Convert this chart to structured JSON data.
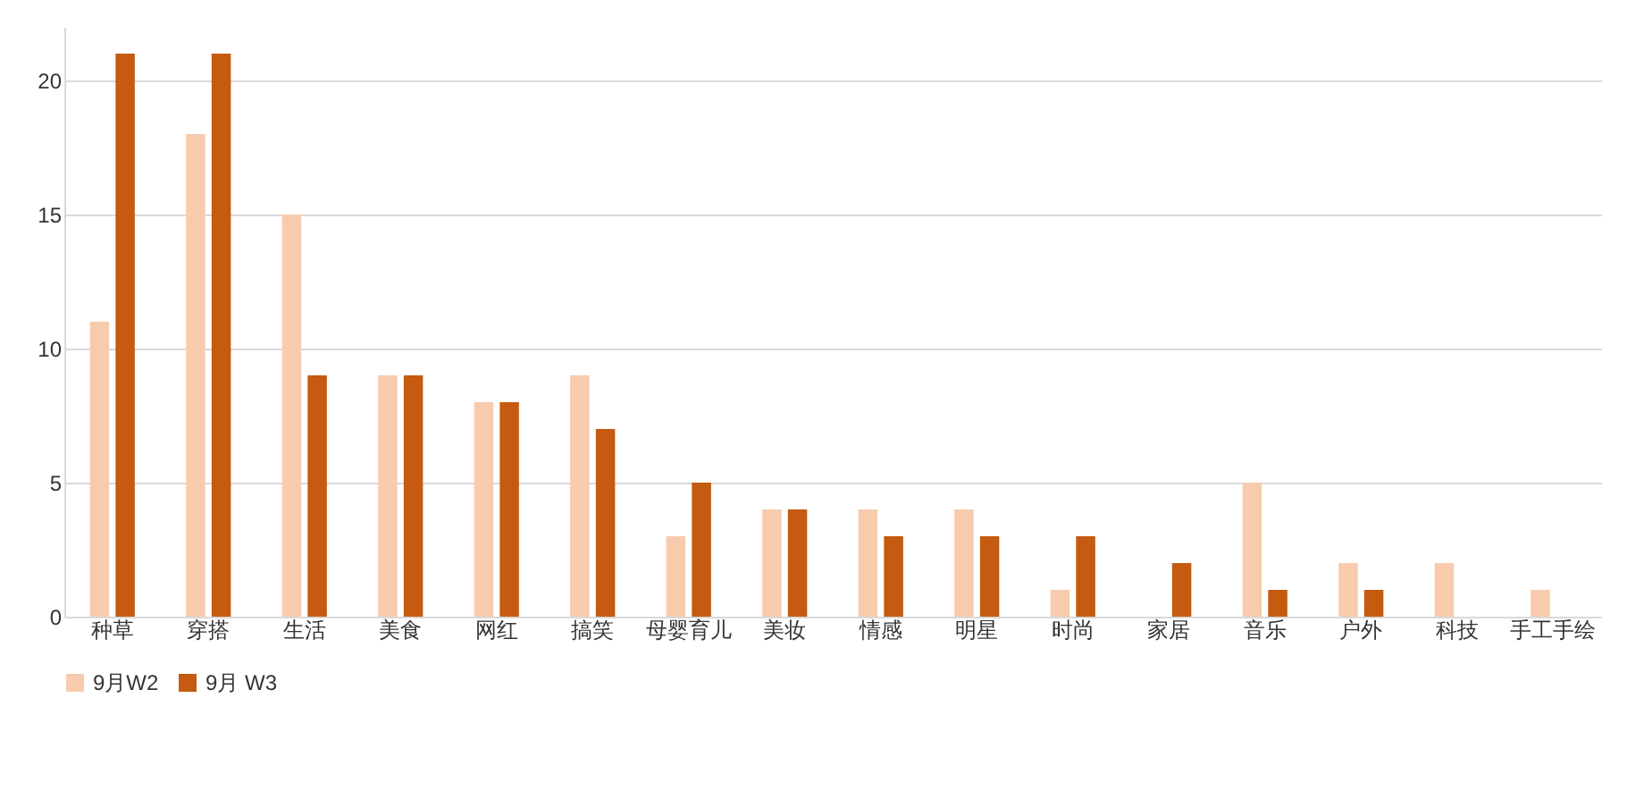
{
  "chart_data": {
    "type": "bar",
    "categories": [
      "种草",
      "穿搭",
      "生活",
      "美食",
      "网红",
      "搞笑",
      "母婴育儿",
      "美妆",
      "情感",
      "明星",
      "时尚",
      "家居",
      "音乐",
      "户外",
      "科技",
      "手工手绘"
    ],
    "series": [
      {
        "name": "9月W2",
        "color": "#f8cbad",
        "values": [
          11,
          18,
          15,
          9,
          8,
          9,
          3,
          4,
          4,
          4,
          1,
          null,
          5,
          2,
          2,
          1
        ]
      },
      {
        "name": "9月 W3",
        "color": "#c55a11",
        "values": [
          21,
          21,
          9,
          9,
          8,
          7,
          5,
          4,
          3,
          3,
          3,
          2,
          1,
          1,
          null,
          null
        ]
      }
    ],
    "ylim": [
      0,
      22
    ],
    "yticks": [
      0,
      5,
      10,
      15,
      20
    ],
    "grid": "y",
    "legend": "bottom"
  }
}
